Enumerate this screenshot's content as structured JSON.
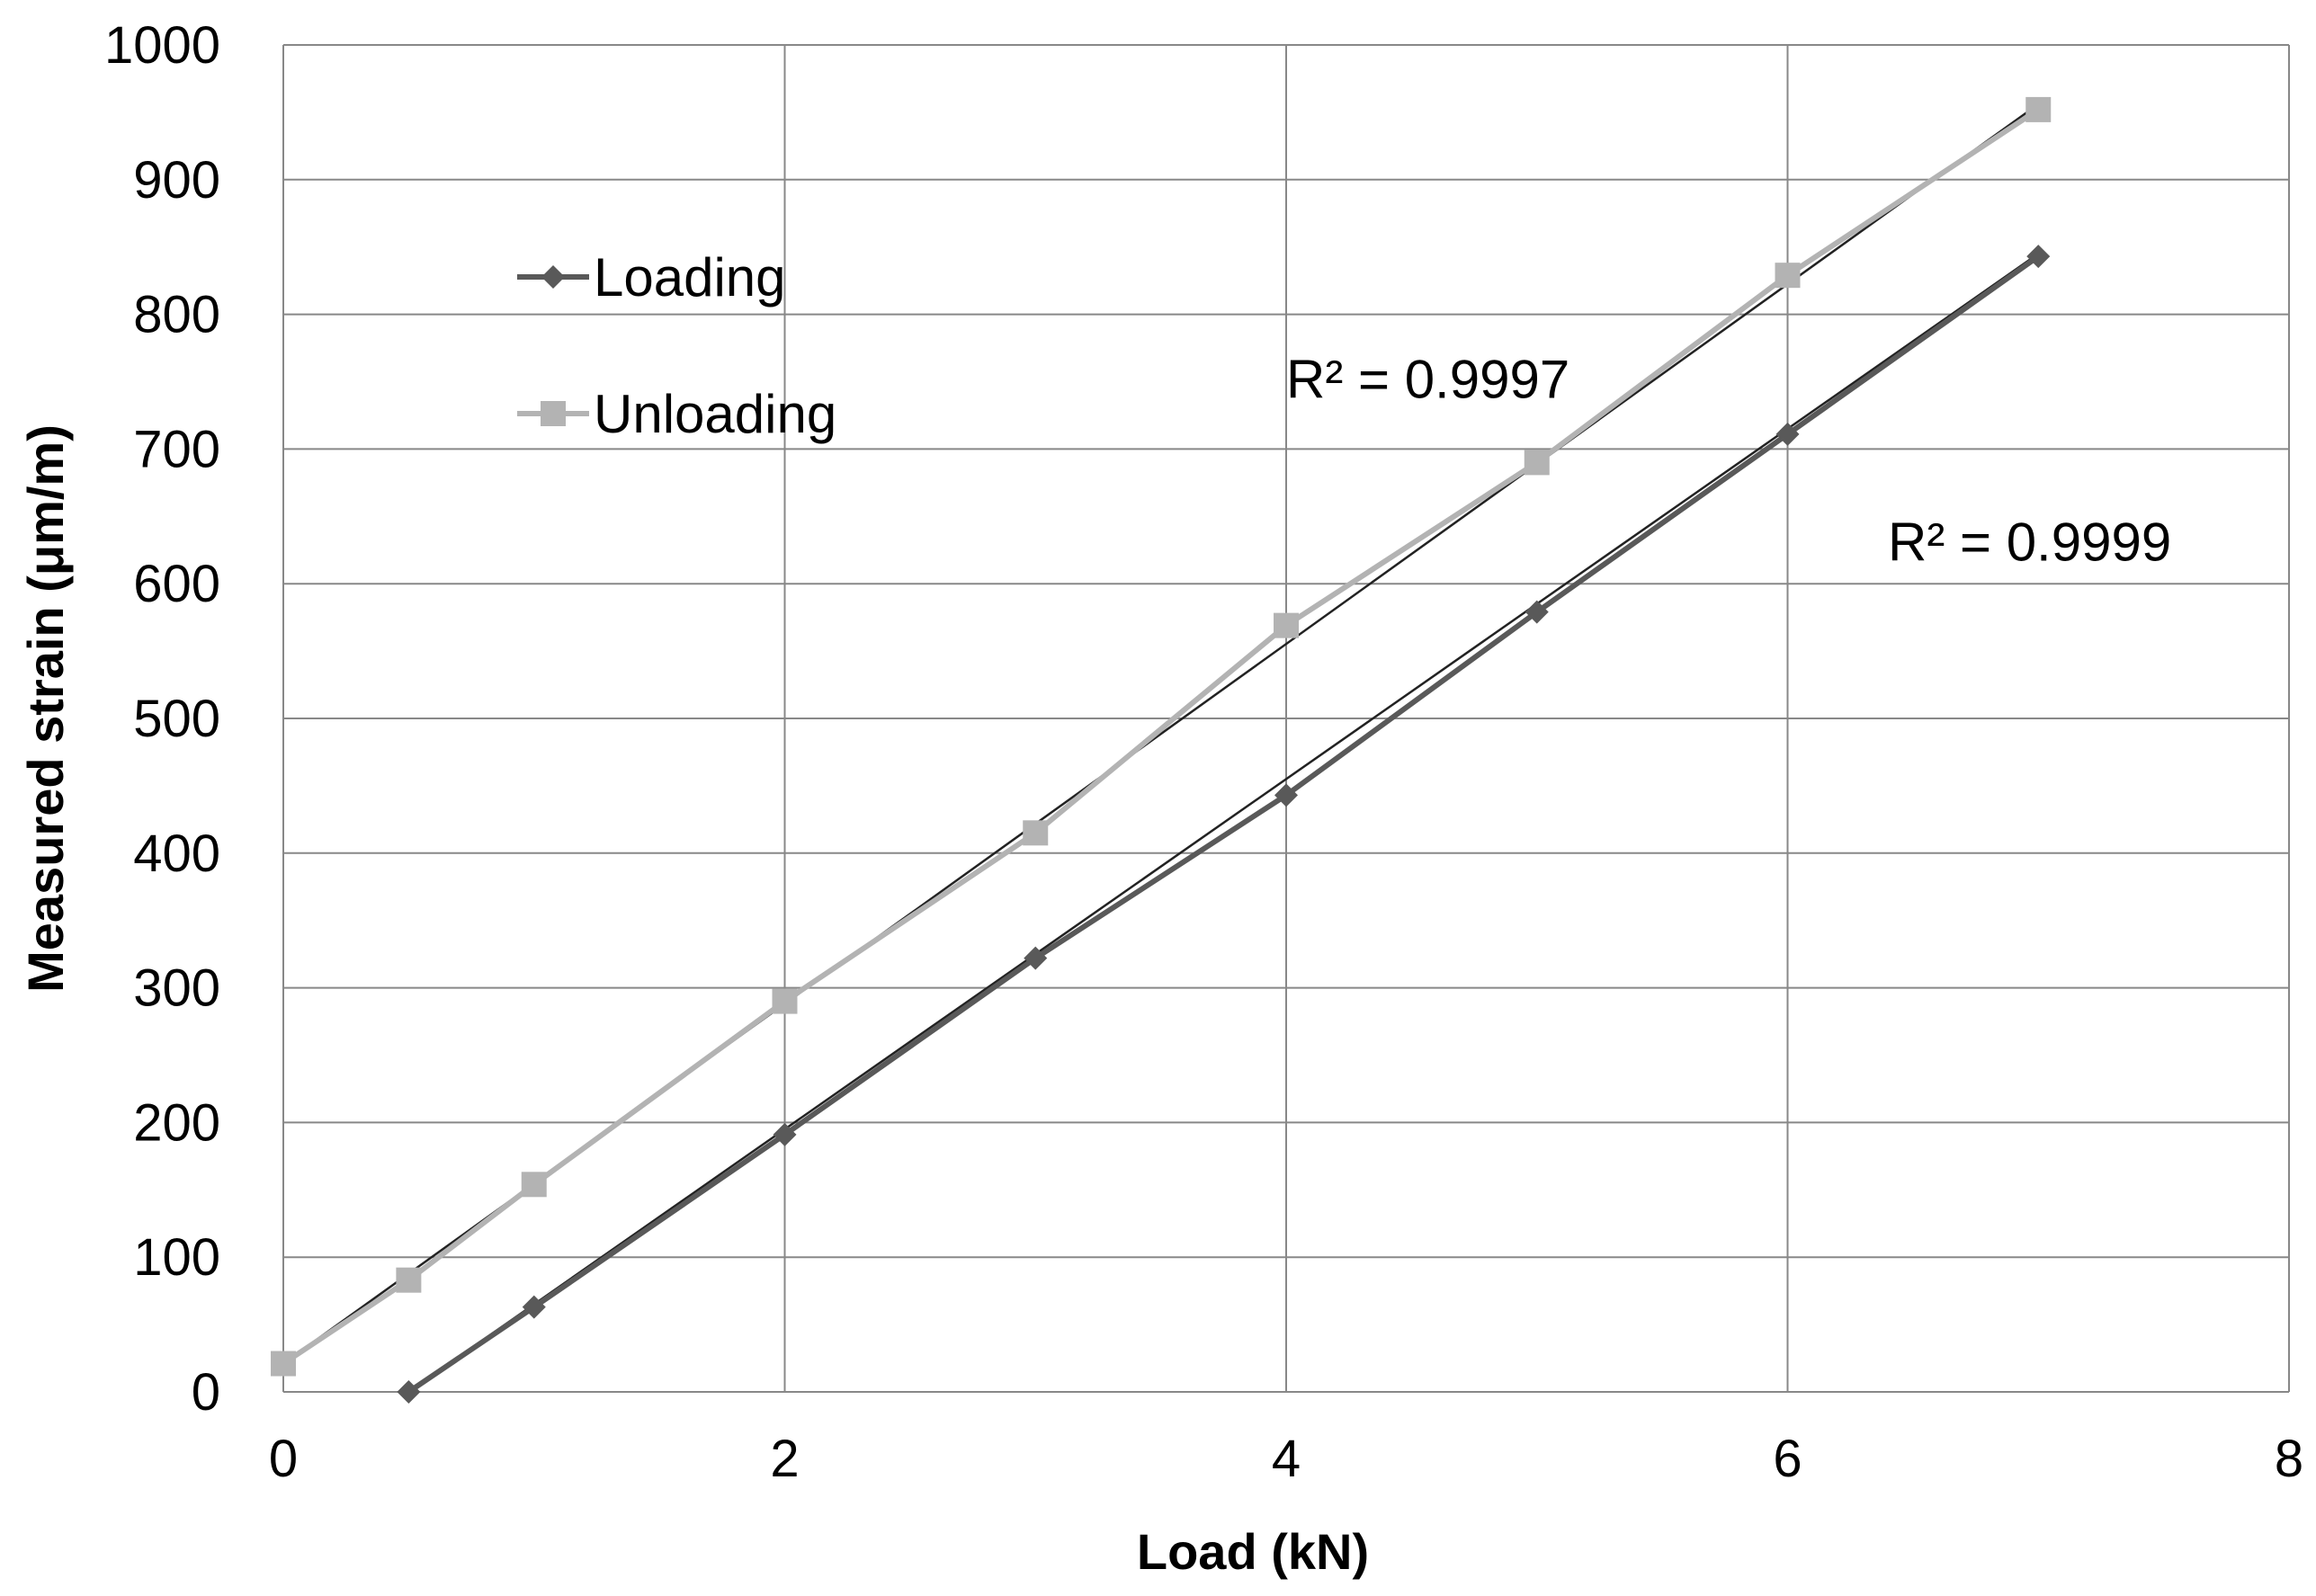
{
  "chart_data": {
    "type": "line",
    "xlabel": "Load (kN)",
    "ylabel": "Measured strain (μm/m)",
    "xlim": [
      0,
      8
    ],
    "ylim": [
      0,
      1000
    ],
    "xticks": [
      0,
      2,
      4,
      6,
      8
    ],
    "yticks": [
      0,
      100,
      200,
      300,
      400,
      500,
      600,
      700,
      800,
      900,
      1000
    ],
    "grid": true,
    "legend_position": "upper-left",
    "series": [
      {
        "name": "Loading",
        "marker": "diamond",
        "color": "#595959",
        "x": [
          0.5,
          1,
          2,
          3,
          4,
          5,
          6,
          7
        ],
        "y": [
          0,
          63,
          191,
          322,
          443,
          579,
          711,
          843
        ],
        "trendline": {
          "x": [
            0.5,
            7
          ],
          "y": [
            0,
            845
          ]
        }
      },
      {
        "name": "Unloading",
        "marker": "square",
        "color": "#b3b3b3",
        "x": [
          0,
          0.5,
          1,
          2,
          3,
          4,
          5,
          6,
          7
        ],
        "y": [
          21,
          83,
          154,
          290,
          415,
          569,
          690,
          829,
          952
        ],
        "trendline": {
          "x": [
            0,
            7
          ],
          "y": [
            21,
            956
          ]
        }
      }
    ],
    "annotations": [
      {
        "text": "R² = 0.9997",
        "x": 4.0,
        "y": 738
      },
      {
        "text": "R² = 0.9999",
        "x": 6.4,
        "y": 617
      }
    ],
    "trendline_color": "#222222"
  }
}
